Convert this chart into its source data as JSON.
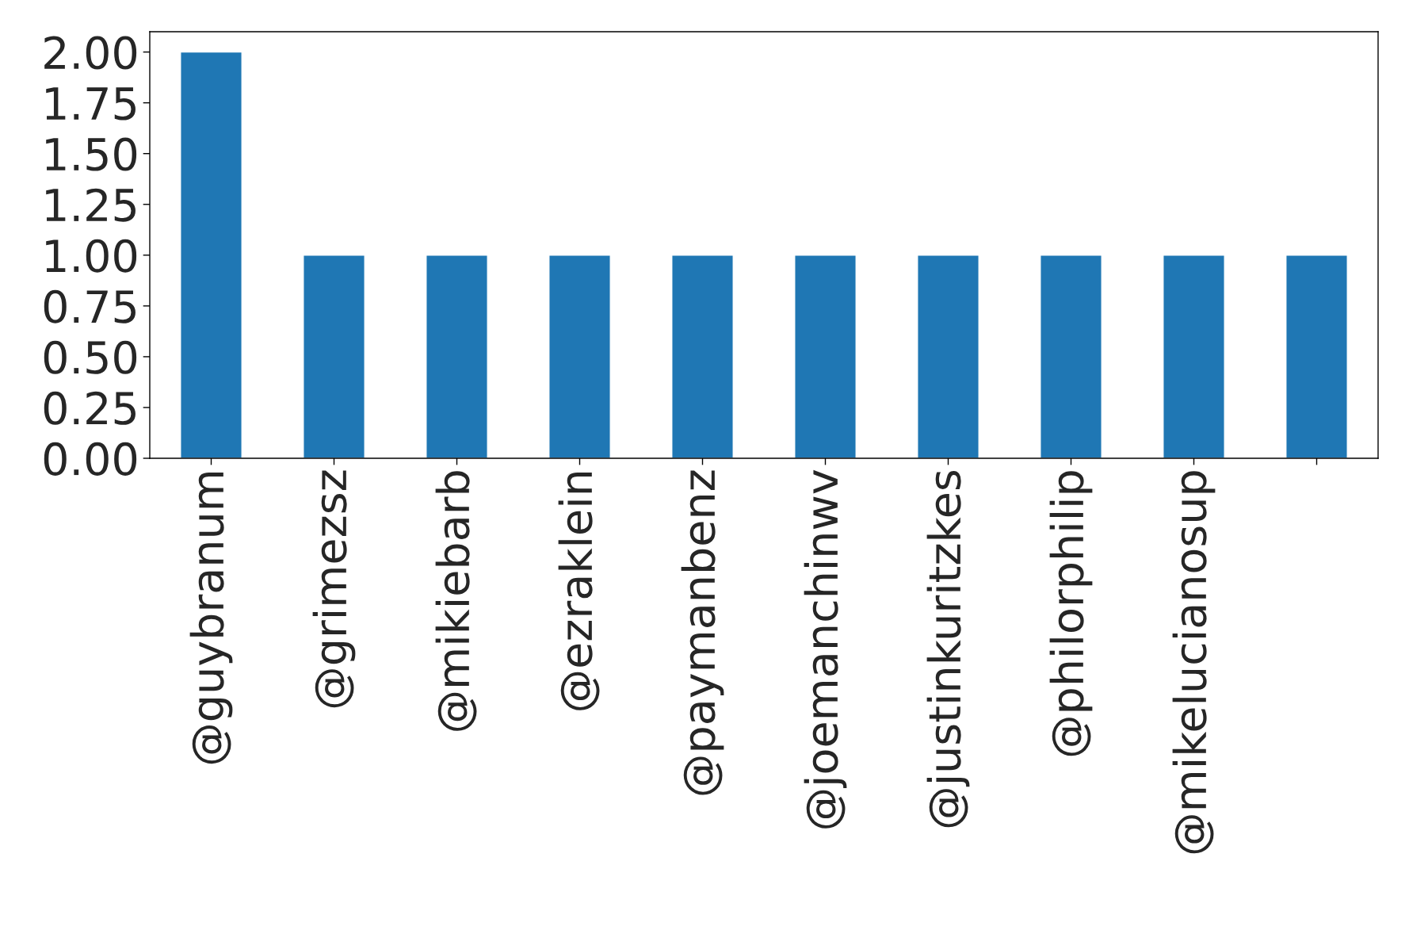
{
  "chart_data": {
    "type": "bar",
    "categories": [
      "@guybranum",
      "@grimezsz",
      "@mikiebarb",
      "@ezraklein",
      "@paymanbenz",
      "@joemanchinwv",
      "@justinkuritzkes",
      "@philorphilip",
      "@mikelucianosup",
      null
    ],
    "values": [
      2,
      1,
      1,
      1,
      1,
      1,
      1,
      1,
      1,
      1
    ],
    "color": "#1f77b4",
    "ylim": [
      0,
      2.1
    ],
    "yticks": [
      {
        "value": 0,
        "label": "0.00"
      },
      {
        "value": 0.25,
        "label": "0.25"
      },
      {
        "value": 0.5,
        "label": "0.50"
      },
      {
        "value": 0.75,
        "label": "0.75"
      },
      {
        "value": 1,
        "label": "1.00"
      },
      {
        "value": 1.25,
        "label": "1.25"
      },
      {
        "value": 1.5,
        "label": "1.50"
      },
      {
        "value": 1.75,
        "label": "1.75"
      },
      {
        "value": 2,
        "label": "2.00"
      }
    ],
    "grid": false,
    "legend": false
  }
}
